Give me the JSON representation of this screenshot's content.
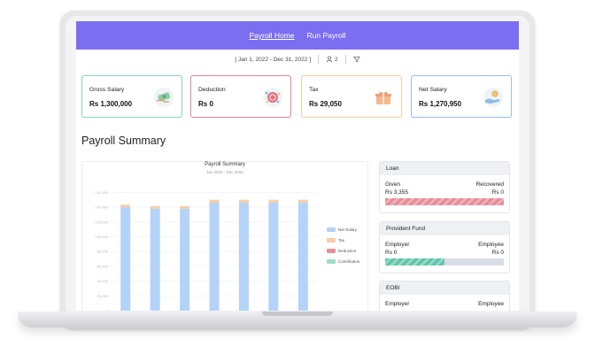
{
  "nav": {
    "links": [
      {
        "label": "Payroll Home",
        "active": true
      },
      {
        "label": "Run Payroll",
        "active": false
      }
    ]
  },
  "filters": {
    "date_range": "[ Jan 1, 2022 - Dec 31, 2022 ]",
    "people_count": "2"
  },
  "summary_cards": [
    {
      "title": "Gross Salary",
      "value": "Rs 1,300,000",
      "icon": "cash-hand-icon",
      "border_color": "#7fd6c6"
    },
    {
      "title": "Deduction",
      "value": "Rs 0",
      "icon": "coin-burst-icon",
      "border_color": "#e4838f"
    },
    {
      "title": "Tax",
      "value": "Rs 29,050",
      "icon": "gift-box-icon",
      "border_color": "#f3cf9e"
    },
    {
      "title": "Net Salary",
      "value": "Rs 1,270,950",
      "icon": "hand-coin-icon",
      "border_color": "#93bff2"
    }
  ],
  "section_title": "Payroll Summary",
  "chart_data": {
    "type": "bar",
    "stacked": true,
    "title": "Payroll Summary",
    "subtitle": "Jan 2022 - Dec 2022",
    "y_ticks": [
      "0",
      "20,000",
      "40,000",
      "60,000",
      "80,000",
      "100,000",
      "120,000",
      "140,000",
      "160,000"
    ],
    "ylim": [
      0,
      170000
    ],
    "categories": [
      "",
      "",
      "",
      "",
      "",
      "",
      ""
    ],
    "series": [
      {
        "name": "Net Salary",
        "color": "#b4d3f8",
        "values": [
          140000,
          138000,
          138000,
          146000,
          146000,
          146000,
          146000
        ]
      },
      {
        "name": "Tax",
        "color": "#f7cfa8",
        "values": [
          3500,
          3500,
          3500,
          4000,
          4000,
          4000,
          4000
        ]
      },
      {
        "name": "Deduction",
        "color": "#e88f9b",
        "values": [
          0,
          0,
          0,
          0,
          0,
          0,
          0
        ]
      },
      {
        "name": "Contribution",
        "color": "#9fdcc8",
        "values": [
          0,
          0,
          0,
          0,
          0,
          0,
          0
        ]
      }
    ],
    "legend_position": "right",
    "grid": true
  },
  "loan": {
    "title": "Loan",
    "given_label": "Given",
    "recovered_label": "Recovered",
    "given_value": "Rs 3,355",
    "recovered_value": "Rs 0",
    "recovered_fraction": 1.0
  },
  "provident_fund": {
    "title": "Provident Fund",
    "employer_label": "Employer",
    "employee_label": "Employee",
    "employer_value": "Rs 0",
    "employee_value": "Rs 0",
    "employer_fraction": 0.5
  },
  "eobi": {
    "title": "EOBI",
    "employer_label": "Employer",
    "employee_label": "Employee"
  }
}
